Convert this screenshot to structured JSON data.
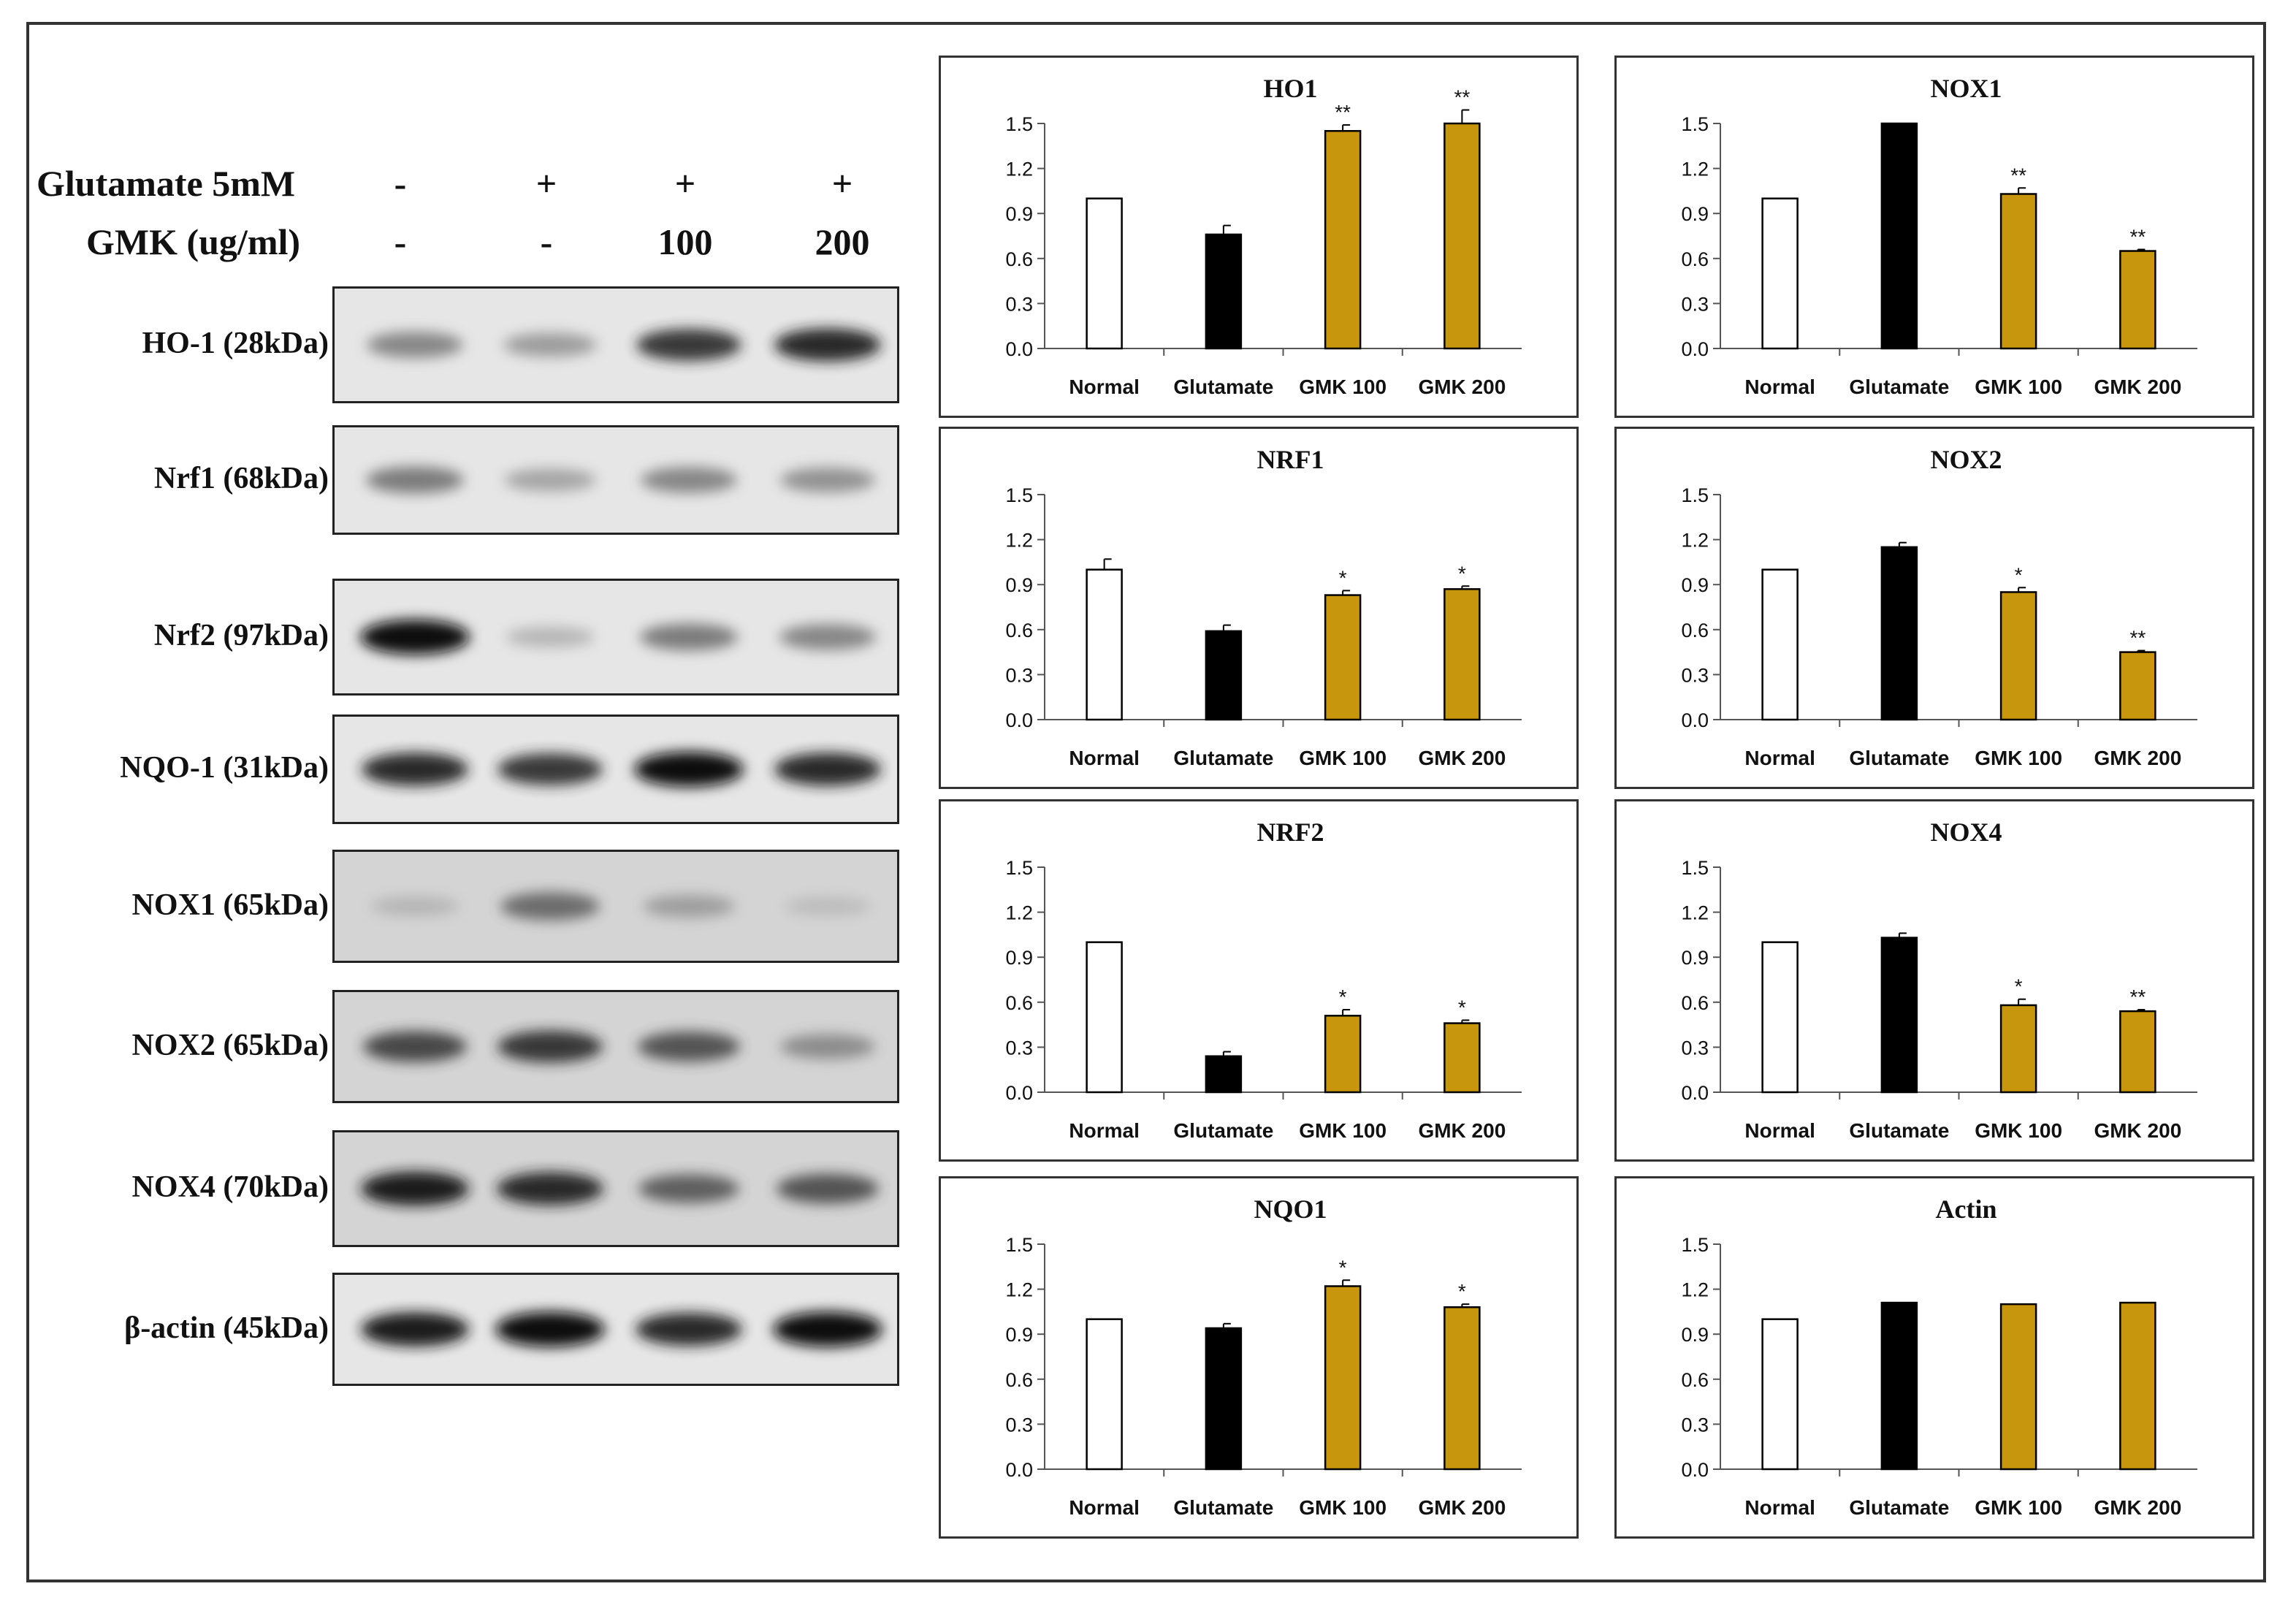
{
  "treatments": {
    "rows": [
      {
        "label": "Glutamate 5mM",
        "values": [
          "-",
          "+",
          "+",
          "+"
        ]
      },
      {
        "label": "GMK (ug/ml)",
        "values": [
          "-",
          "-",
          "100",
          "200"
        ]
      }
    ]
  },
  "blots": [
    {
      "label": "HO-1 (28kDa)",
      "intensity": [
        0.55,
        0.45,
        0.85,
        0.9
      ]
    },
    {
      "label": "Nrf1 (68kDa)",
      "intensity": [
        0.6,
        0.4,
        0.55,
        0.5
      ]
    },
    {
      "label": "Nrf2 (97kDa)",
      "intensity": [
        1.0,
        0.3,
        0.6,
        0.55
      ]
    },
    {
      "label": "NQO-1 (31kDa)",
      "intensity": [
        0.9,
        0.85,
        1.0,
        0.9
      ]
    },
    {
      "label": "NOX1 (65kDa)",
      "intensity": [
        0.25,
        0.65,
        0.4,
        0.2
      ]
    },
    {
      "label": "NOX2 (65kDa)",
      "intensity": [
        0.8,
        0.85,
        0.75,
        0.5
      ]
    },
    {
      "label": "NOX4 (70kDa)",
      "intensity": [
        0.95,
        0.9,
        0.7,
        0.75
      ]
    },
    {
      "label": "β-actin (45kDa)",
      "intensity": [
        0.95,
        1.0,
        0.9,
        1.0
      ]
    }
  ],
  "colors": {
    "normal": "#ffffff",
    "glutamate": "#000000",
    "gmk": "#c8960c",
    "axis": "#555555"
  },
  "chart_data": [
    {
      "type": "bar",
      "title": "HO1",
      "categories": [
        "Normal",
        "Glutamate",
        "GMK 100",
        "GMK 200"
      ],
      "values": [
        1.0,
        0.76,
        1.45,
        1.5
      ],
      "errors": [
        0,
        0.06,
        0.04,
        0.09
      ],
      "significance": [
        "",
        "",
        "**",
        "**"
      ],
      "ylim": [
        0,
        1.5
      ],
      "yticks": [
        "0.0",
        "0.3",
        "0.6",
        "0.9",
        "1.2",
        "1.5"
      ]
    },
    {
      "type": "bar",
      "title": "NOX1",
      "categories": [
        "Normal",
        "Glutamate",
        "GMK 100",
        "GMK 200"
      ],
      "values": [
        1.0,
        1.5,
        1.03,
        0.65
      ],
      "errors": [
        0,
        0,
        0.04,
        0.01
      ],
      "significance": [
        "",
        "",
        "**",
        "**"
      ],
      "ylim": [
        0,
        1.5
      ],
      "yticks": [
        "0.0",
        "0.3",
        "0.6",
        "0.9",
        "1.2",
        "1.5"
      ]
    },
    {
      "type": "bar",
      "title": "NRF1",
      "categories": [
        "Normal",
        "Glutamate",
        "GMK 100",
        "GMK 200"
      ],
      "values": [
        1.0,
        0.59,
        0.83,
        0.87
      ],
      "errors": [
        0.07,
        0.04,
        0.03,
        0.02
      ],
      "significance": [
        "",
        "",
        "*",
        "*"
      ],
      "ylim": [
        0,
        1.5
      ],
      "yticks": [
        "0.0",
        "0.3",
        "0.6",
        "0.9",
        "1.2",
        "1.5"
      ]
    },
    {
      "type": "bar",
      "title": "NOX2",
      "categories": [
        "Normal",
        "Glutamate",
        "GMK 100",
        "GMK 200"
      ],
      "values": [
        1.0,
        1.15,
        0.85,
        0.45
      ],
      "errors": [
        0,
        0.03,
        0.03,
        0.01
      ],
      "significance": [
        "",
        "",
        "*",
        "**"
      ],
      "ylim": [
        0,
        1.5
      ],
      "yticks": [
        "0.0",
        "0.3",
        "0.6",
        "0.9",
        "1.2",
        "1.5"
      ]
    },
    {
      "type": "bar",
      "title": "NRF2",
      "categories": [
        "Normal",
        "Glutamate",
        "GMK 100",
        "GMK 200"
      ],
      "values": [
        1.0,
        0.24,
        0.51,
        0.46
      ],
      "errors": [
        0,
        0.03,
        0.04,
        0.02
      ],
      "significance": [
        "",
        "",
        "*",
        "*"
      ],
      "ylim": [
        0,
        1.5
      ],
      "yticks": [
        "0.0",
        "0.3",
        "0.6",
        "0.9",
        "1.2",
        "1.5"
      ]
    },
    {
      "type": "bar",
      "title": "NOX4",
      "categories": [
        "Normal",
        "Glutamate",
        "GMK 100",
        "GMK 200"
      ],
      "values": [
        1.0,
        1.03,
        0.58,
        0.54
      ],
      "errors": [
        0,
        0.03,
        0.04,
        0.01
      ],
      "significance": [
        "",
        "",
        "*",
        "**"
      ],
      "ylim": [
        0,
        1.5
      ],
      "yticks": [
        "0.0",
        "0.3",
        "0.6",
        "0.9",
        "1.2",
        "1.5"
      ]
    },
    {
      "type": "bar",
      "title": "NQO1",
      "categories": [
        "Normal",
        "Glutamate",
        "GMK 100",
        "GMK 200"
      ],
      "values": [
        1.0,
        0.94,
        1.22,
        1.08
      ],
      "errors": [
        0,
        0.03,
        0.04,
        0.02
      ],
      "significance": [
        "",
        "",
        "*",
        "*"
      ],
      "ylim": [
        0,
        1.5
      ],
      "yticks": [
        "0.0",
        "0.3",
        "0.6",
        "0.9",
        "1.2",
        "1.5"
      ]
    },
    {
      "type": "bar",
      "title": "Actin",
      "categories": [
        "Normal",
        "Glutamate",
        "GMK 100",
        "GMK 200"
      ],
      "values": [
        1.0,
        1.11,
        1.1,
        1.11
      ],
      "errors": [
        0,
        0,
        0,
        0
      ],
      "significance": [
        "",
        "",
        "",
        ""
      ],
      "ylim": [
        0,
        1.5
      ],
      "yticks": [
        "0.0",
        "0.3",
        "0.6",
        "0.9",
        "1.2",
        "1.5"
      ]
    }
  ]
}
